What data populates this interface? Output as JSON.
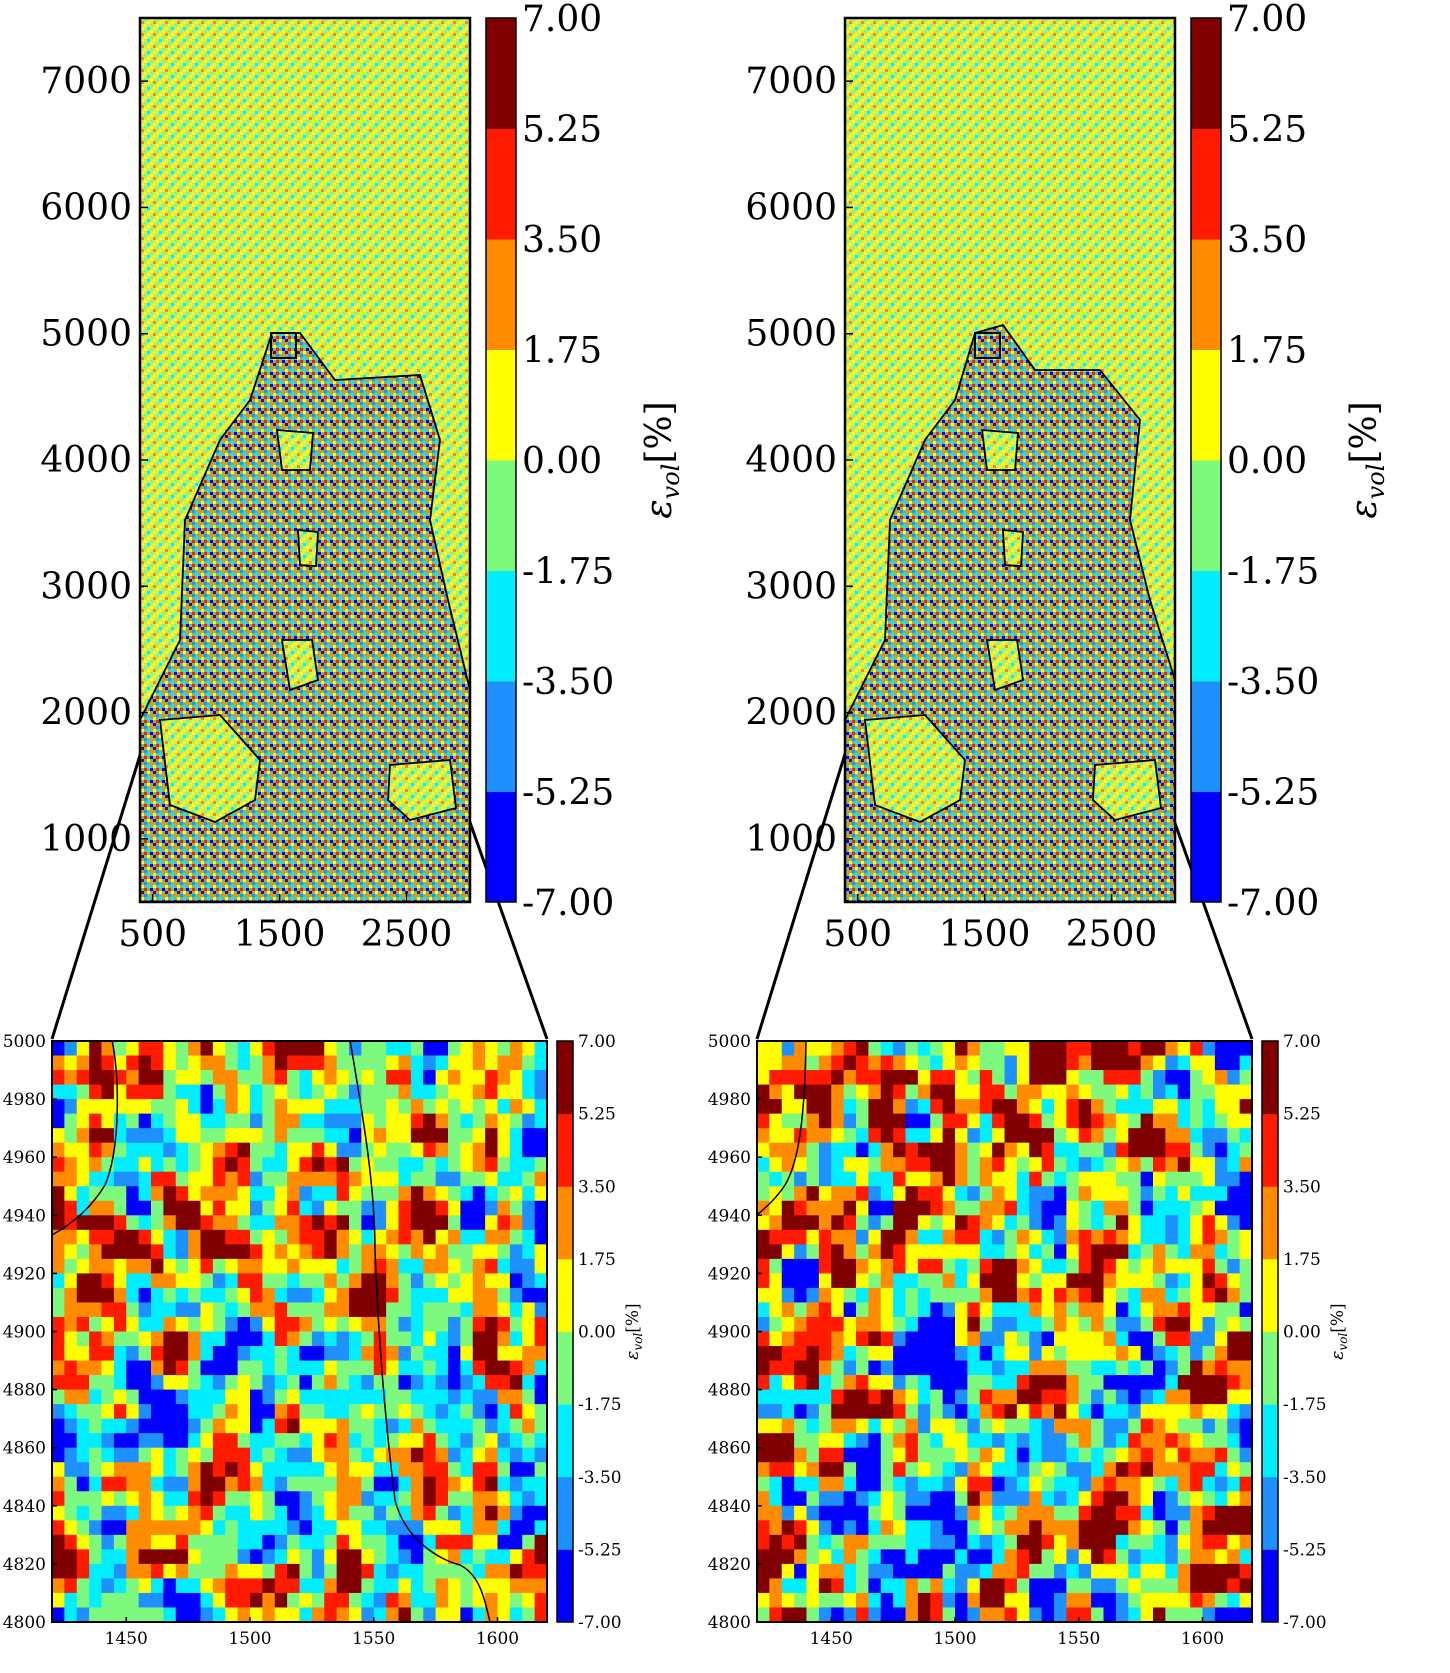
{
  "figure": {
    "colorbar_label": "ε",
    "colorbar_label_sub": "vol",
    "colorbar_label_unit": "[%]"
  },
  "colormap": {
    "levels": [
      "-7.00",
      "-5.25",
      "-3.50",
      "-1.75",
      "0.00",
      "1.75",
      "3.50",
      "5.25",
      "7.00"
    ],
    "bin_colors": [
      "#0000ff",
      "#1e90ff",
      "#00eeff",
      "#7dfa7d",
      "#ffff00",
      "#ff8c00",
      "#ff1a00",
      "#800000"
    ]
  },
  "chart_data": [
    {
      "id": "top-left",
      "type": "heatmap",
      "title": "",
      "xlim": [
        400,
        3000
      ],
      "ylim": [
        500,
        7500
      ],
      "xticks": [
        "500",
        "1500",
        "2500"
      ],
      "yticks": [
        "1000",
        "2000",
        "3000",
        "4000",
        "5000",
        "6000",
        "7000"
      ],
      "zoom_box": {
        "x": [
          1420,
          1620
        ],
        "y": [
          4800,
          5000
        ]
      },
      "colorbar_ticks": [
        "-7.00",
        "-5.25",
        "-3.50",
        "-1.75",
        "0.00",
        "1.75",
        "3.50",
        "5.25",
        "7.00"
      ],
      "colorbar_label": "ε_vol [%]"
    },
    {
      "id": "top-right",
      "type": "heatmap",
      "title": "",
      "xlim": [
        400,
        3000
      ],
      "ylim": [
        500,
        7500
      ],
      "xticks": [
        "500",
        "1500",
        "2500"
      ],
      "yticks": [
        "1000",
        "2000",
        "3000",
        "4000",
        "5000",
        "6000",
        "7000"
      ],
      "zoom_box": {
        "x": [
          1420,
          1620
        ],
        "y": [
          4800,
          5000
        ]
      },
      "colorbar_ticks": [
        "-7.00",
        "-5.25",
        "-3.50",
        "-1.75",
        "0.00",
        "1.75",
        "3.50",
        "5.25",
        "7.00"
      ],
      "colorbar_label": "ε_vol [%]"
    },
    {
      "id": "bottom-left",
      "type": "heatmap",
      "title": "",
      "xlim": [
        1420,
        1620
      ],
      "ylim": [
        4800,
        5000
      ],
      "xticks": [
        "1450",
        "1500",
        "1550",
        "1600"
      ],
      "yticks": [
        "4800",
        "4820",
        "4840",
        "4860",
        "4880",
        "4900",
        "4920",
        "4940",
        "4960",
        "4980",
        "5000"
      ],
      "colorbar_ticks": [
        "-7.00",
        "-5.25",
        "-3.50",
        "-1.75",
        "0.00",
        "1.75",
        "3.50",
        "5.25",
        "7.00"
      ],
      "colorbar_label": "ε_vol [%]"
    },
    {
      "id": "bottom-right",
      "type": "heatmap",
      "title": "",
      "xlim": [
        1420,
        1620
      ],
      "ylim": [
        4800,
        5000
      ],
      "xticks": [
        "1450",
        "1500",
        "1550",
        "1600"
      ],
      "yticks": [
        "4800",
        "4820",
        "4840",
        "4860",
        "4880",
        "4900",
        "4920",
        "4940",
        "4960",
        "4980",
        "5000"
      ],
      "colorbar_ticks": [
        "-7.00",
        "-5.25",
        "-3.50",
        "-1.75",
        "0.00",
        "1.75",
        "3.50",
        "5.25",
        "7.00"
      ],
      "colorbar_label": "ε_vol [%]"
    }
  ]
}
